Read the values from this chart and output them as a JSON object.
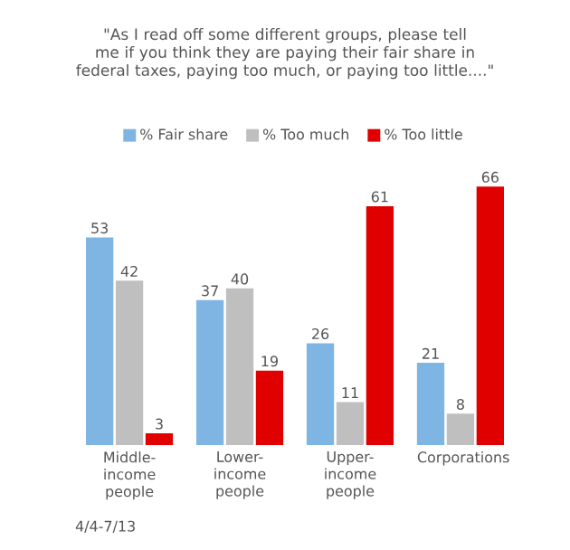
{
  "chart_data": {
    "type": "bar",
    "subtitle": "\"As I read off some different groups, please tell me if you think they are paying their fair share in federal taxes, paying too much, or paying too little....\"",
    "categories": [
      "Middle-income people",
      "Lower-income people",
      "Upper-income people",
      "Corporations"
    ],
    "series": [
      {
        "name": "% Fair share",
        "color": "#7fb5e3",
        "values": [
          53,
          37,
          26,
          21
        ]
      },
      {
        "name": "% Too much",
        "color": "#bfbfbf",
        "values": [
          42,
          40,
          11,
          8
        ]
      },
      {
        "name": "% Too little",
        "color": "#e00000",
        "values": [
          3,
          19,
          61,
          66
        ]
      }
    ],
    "data_labels": true,
    "legend": "top",
    "annotations": [
      "4/4-7/13"
    ]
  }
}
